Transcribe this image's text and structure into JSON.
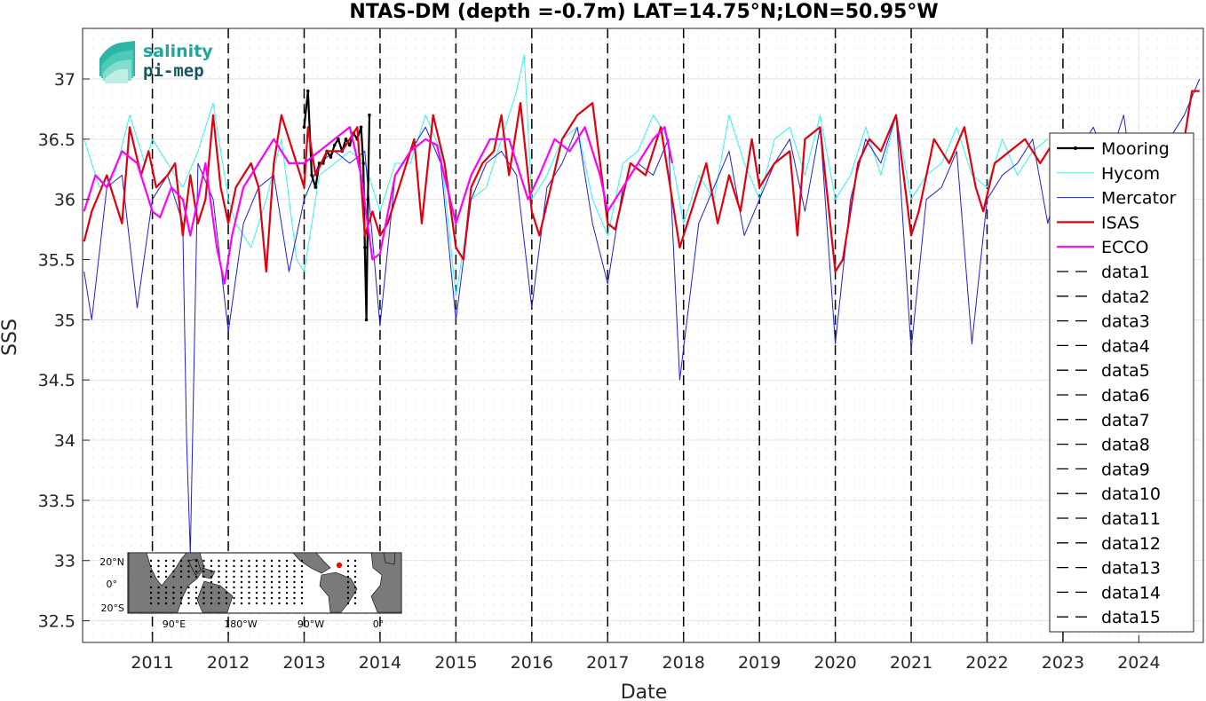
{
  "chart_data": {
    "type": "line",
    "title": "NTAS-DM (depth =-0.7m) LAT=14.75°N;LON=50.95°W",
    "xlabel": "Date",
    "ylabel": "SSS",
    "xlim": [
      2010.08,
      2024.85
    ],
    "ylim": [
      32.32,
      37.42
    ],
    "x_ticks": [
      "2011",
      "2012",
      "2013",
      "2014",
      "2015",
      "2016",
      "2017",
      "2018",
      "2019",
      "2020",
      "2021",
      "2022",
      "2023",
      "2024"
    ],
    "y_ticks": [
      "32.5",
      "33",
      "33.5",
      "34",
      "34.5",
      "35",
      "35.5",
      "36",
      "36.5",
      "37"
    ],
    "grid": "dotted minor",
    "legend_position": "right",
    "vlines": [
      2011,
      2012,
      2013,
      2014,
      2015,
      2016,
      2017,
      2018,
      2019,
      2020,
      2021,
      2022,
      2023
    ],
    "series": [
      {
        "name": "Mooring",
        "color": "#000000",
        "width": 2.2,
        "x": [
          2013.0,
          2013.05,
          2013.1,
          2013.15,
          2013.2,
          2013.25,
          2013.3,
          2013.35,
          2013.4,
          2013.45,
          2013.5,
          2013.55,
          2013.6,
          2013.65,
          2013.7,
          2013.75,
          2013.78,
          2013.8,
          2013.82,
          2013.84,
          2013.86
        ],
        "y": [
          36.6,
          36.9,
          36.2,
          36.1,
          36.3,
          36.3,
          36.4,
          36.35,
          36.45,
          36.5,
          36.4,
          36.5,
          36.45,
          36.55,
          36.5,
          36.6,
          36.3,
          35.6,
          35.0,
          36.0,
          36.7
        ]
      },
      {
        "name": "Hycom",
        "color": "#2ff5f5",
        "width": 1,
        "x": [
          2010.1,
          2010.3,
          2010.5,
          2010.7,
          2010.9,
          2011.0,
          2011.2,
          2011.4,
          2011.6,
          2011.8,
          2012.0,
          2012.1,
          2012.3,
          2012.5,
          2012.7,
          2012.9,
          2013.0,
          2013.2,
          2013.4,
          2013.6,
          2013.8,
          2014.0,
          2014.2,
          2014.4,
          2014.6,
          2014.8,
          2015.0,
          2015.2,
          2015.4,
          2015.6,
          2015.8,
          2015.9,
          2016.0,
          2016.2,
          2016.4,
          2016.6,
          2016.8,
          2017.0,
          2017.2,
          2017.4,
          2017.6,
          2017.8,
          2018.0,
          2018.2,
          2018.4,
          2018.6,
          2018.8,
          2019.0,
          2019.2,
          2019.4,
          2019.6,
          2019.8,
          2020.0,
          2020.2,
          2020.4,
          2020.6,
          2020.8,
          2021.0,
          2021.2,
          2021.4,
          2021.6,
          2021.8,
          2022.0,
          2022.2,
          2022.4,
          2022.6,
          2022.8
        ],
        "y": [
          36.5,
          36.1,
          36.2,
          36.7,
          36.3,
          36.5,
          36.3,
          36.1,
          36.4,
          36.8,
          36.0,
          35.8,
          35.6,
          36.0,
          36.5,
          35.5,
          35.4,
          36.2,
          36.3,
          36.4,
          36.3,
          35.9,
          36.3,
          36.3,
          36.7,
          36.4,
          35.2,
          36.0,
          36.1,
          36.5,
          36.9,
          37.2,
          36.0,
          36.2,
          36.5,
          36.6,
          36.0,
          35.7,
          36.3,
          36.4,
          36.7,
          36.5,
          35.8,
          36.2,
          36.0,
          36.7,
          36.3,
          36.0,
          36.5,
          36.6,
          36.2,
          36.7,
          36.0,
          36.2,
          36.6,
          36.2,
          36.7,
          36.0,
          36.2,
          36.3,
          36.6,
          36.2,
          36.1,
          36.5,
          36.2,
          36.4,
          36.5
        ]
      },
      {
        "name": "Mercator",
        "color": "#1f1fdb",
        "width": 1,
        "x": [
          2010.1,
          2010.2,
          2010.4,
          2010.6,
          2010.8,
          2011.0,
          2011.2,
          2011.4,
          2011.45,
          2011.5,
          2011.6,
          2011.8,
          2012.0,
          2012.2,
          2012.4,
          2012.6,
          2012.8,
          2013.0,
          2013.2,
          2013.4,
          2013.6,
          2013.8,
          2014.0,
          2014.2,
          2014.4,
          2014.6,
          2014.8,
          2015.0,
          2015.2,
          2015.4,
          2015.6,
          2015.8,
          2016.0,
          2016.2,
          2016.4,
          2016.6,
          2016.8,
          2017.0,
          2017.2,
          2017.4,
          2017.6,
          2017.8,
          2017.95,
          2018.2,
          2018.4,
          2018.6,
          2018.8,
          2019.0,
          2019.2,
          2019.4,
          2019.6,
          2019.8,
          2020.0,
          2020.2,
          2020.4,
          2020.6,
          2020.8,
          2021.0,
          2021.2,
          2021.4,
          2021.6,
          2021.8,
          2022.0,
          2022.2,
          2022.4,
          2022.6,
          2022.8,
          2023.0,
          2023.2,
          2023.4,
          2023.6,
          2023.8,
          2024.0,
          2024.2,
          2024.4,
          2024.6,
          2024.8
        ],
        "y": [
          35.4,
          35.0,
          36.1,
          36.2,
          35.1,
          36.0,
          36.2,
          35.8,
          34.0,
          33.05,
          36.3,
          36.0,
          34.9,
          35.8,
          36.1,
          36.2,
          35.4,
          36.0,
          36.3,
          36.4,
          36.3,
          36.4,
          34.95,
          36.2,
          36.4,
          36.6,
          36.3,
          35.0,
          36.0,
          36.3,
          36.4,
          36.2,
          35.1,
          36.1,
          36.3,
          36.6,
          35.8,
          35.3,
          36.1,
          36.3,
          36.2,
          36.5,
          34.5,
          35.8,
          36.1,
          36.4,
          35.7,
          36.0,
          36.3,
          36.5,
          35.9,
          36.6,
          34.8,
          36.0,
          36.5,
          36.3,
          36.7,
          34.75,
          36.0,
          36.1,
          36.4,
          34.8,
          36.0,
          36.2,
          36.3,
          36.5,
          35.8,
          36.3,
          36.4,
          36.6,
          36.3,
          36.7,
          35.8,
          36.4,
          36.5,
          36.7,
          37.0
        ]
      },
      {
        "name": "ISAS",
        "color": "#e0000e",
        "width": 2.2,
        "x": [
          2010.1,
          2010.2,
          2010.4,
          2010.6,
          2010.7,
          2010.85,
          2010.95,
          2011.05,
          2011.2,
          2011.3,
          2011.4,
          2011.5,
          2011.6,
          2011.7,
          2011.8,
          2011.9,
          2012.0,
          2012.1,
          2012.2,
          2012.3,
          2012.4,
          2012.5,
          2012.6,
          2012.7,
          2012.8,
          2012.9,
          2013.0,
          2013.05,
          2013.15,
          2013.3,
          2013.5,
          2013.7,
          2013.8,
          2013.9,
          2014.0,
          2014.1,
          2014.3,
          2014.45,
          2014.55,
          2014.7,
          2014.85,
          2015.0,
          2015.1,
          2015.2,
          2015.35,
          2015.5,
          2015.6,
          2015.7,
          2015.85,
          2016.0,
          2016.1,
          2016.25,
          2016.4,
          2016.6,
          2016.8,
          2017.0,
          2017.1,
          2017.3,
          2017.5,
          2017.7,
          2017.85,
          2017.95,
          2018.1,
          2018.3,
          2018.45,
          2018.6,
          2018.75,
          2018.9,
          2019.0,
          2019.2,
          2019.4,
          2019.5,
          2019.6,
          2019.8,
          2020.0,
          2020.1,
          2020.3,
          2020.45,
          2020.6,
          2020.8,
          2021.0,
          2021.1,
          2021.3,
          2021.5,
          2021.7,
          2021.85,
          2021.95,
          2022.1,
          2022.3,
          2022.5,
          2022.7,
          2022.9,
          2023.1,
          2023.3,
          2023.5,
          2023.7,
          2023.9,
          2024.1,
          2024.3,
          2024.5,
          2024.6,
          2024.7,
          2024.8
        ],
        "y": [
          35.65,
          35.9,
          36.2,
          35.8,
          36.6,
          36.2,
          36.4,
          36.1,
          36.2,
          36.3,
          35.7,
          36.2,
          35.8,
          36.0,
          36.7,
          36.1,
          35.8,
          36.1,
          36.2,
          36.3,
          36.1,
          35.4,
          36.3,
          36.7,
          36.5,
          36.3,
          36.1,
          36.6,
          36.2,
          36.4,
          36.4,
          36.6,
          35.7,
          35.9,
          35.7,
          35.8,
          36.2,
          36.5,
          35.8,
          36.7,
          36.3,
          35.6,
          35.5,
          36.1,
          36.3,
          36.4,
          36.7,
          36.2,
          36.8,
          35.9,
          35.7,
          36.1,
          36.5,
          36.7,
          36.8,
          35.8,
          35.75,
          36.3,
          36.2,
          36.6,
          36.0,
          35.6,
          35.9,
          36.3,
          35.8,
          36.2,
          35.9,
          36.5,
          36.1,
          36.3,
          36.4,
          35.7,
          36.5,
          36.6,
          35.4,
          35.5,
          36.3,
          36.5,
          36.4,
          36.7,
          35.7,
          35.9,
          36.5,
          36.3,
          36.6,
          36.1,
          35.9,
          36.3,
          36.4,
          36.5,
          36.3,
          36.5,
          36.4,
          36.2,
          36.2,
          36.3,
          36.5,
          36.3,
          36.4,
          36.2,
          36.5,
          36.9,
          36.9
        ]
      },
      {
        "name": "ECCO",
        "color": "#ff00ff",
        "width": 2.2,
        "x": [
          2010.1,
          2010.25,
          2010.4,
          2010.6,
          2010.8,
          2011.0,
          2011.1,
          2011.25,
          2011.4,
          2011.5,
          2011.7,
          2011.85,
          2011.95,
          2012.05,
          2012.2,
          2012.4,
          2012.6,
          2012.8,
          2013.0,
          2013.2,
          2013.4,
          2013.6,
          2013.75,
          2013.9,
          2014.0,
          2014.2,
          2014.4,
          2014.6,
          2014.75,
          2015.0,
          2015.2,
          2015.45,
          2015.7,
          2015.95,
          2016.1,
          2016.3,
          2016.5,
          2016.7,
          2016.9,
          2017.0,
          2017.2,
          2017.4,
          2017.6,
          2017.75,
          2017.85
        ],
        "y": [
          35.9,
          36.2,
          36.1,
          36.4,
          36.3,
          35.9,
          35.85,
          36.1,
          36.0,
          35.7,
          36.3,
          35.6,
          35.3,
          35.7,
          36.1,
          36.3,
          36.5,
          36.3,
          36.3,
          36.4,
          36.5,
          36.6,
          36.2,
          35.5,
          35.55,
          36.2,
          36.4,
          36.5,
          36.45,
          35.8,
          36.2,
          36.5,
          36.5,
          36.0,
          36.2,
          36.5,
          36.4,
          36.6,
          36.2,
          35.9,
          36.1,
          36.3,
          36.5,
          36.6,
          36.3
        ]
      }
    ],
    "legend_dashed": [
      "data1",
      "data2",
      "data3",
      "data4",
      "data5",
      "data6",
      "data7",
      "data8",
      "data9",
      "data10",
      "data11",
      "data12",
      "data13",
      "data14",
      "data15"
    ],
    "inset_map": {
      "lat_labels": [
        "20°N",
        "0°",
        "20°S"
      ],
      "lon_labels": [
        "90°E",
        "180°W",
        "90°W",
        "0°"
      ]
    },
    "logo": {
      "line1": "salinity",
      "line2": "pi-mep"
    }
  }
}
